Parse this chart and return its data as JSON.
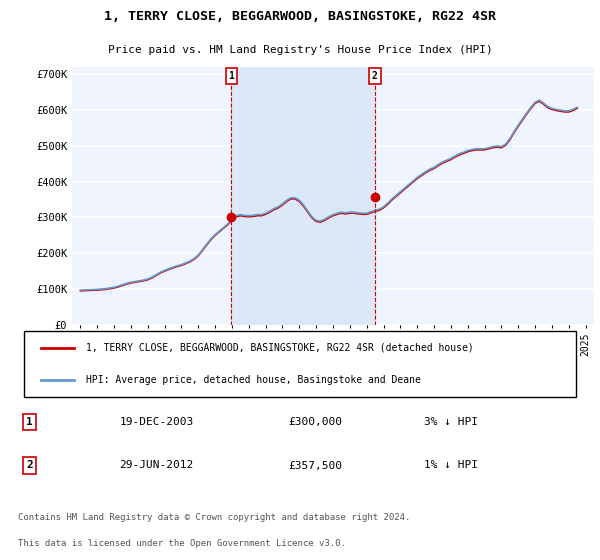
{
  "title": "1, TERRY CLOSE, BEGGARWOOD, BASINGSTOKE, RG22 4SR",
  "subtitle": "Price paid vs. HM Land Registry's House Price Index (HPI)",
  "ylabel_ticks": [
    "£0",
    "£100K",
    "£200K",
    "£300K",
    "£400K",
    "£500K",
    "£600K",
    "£700K"
  ],
  "ytick_vals": [
    0,
    100000,
    200000,
    300000,
    400000,
    500000,
    600000,
    700000
  ],
  "ylim": [
    0,
    720000
  ],
  "xlim_start": 1994.5,
  "xlim_end": 2025.5,
  "background_color": "#ffffff",
  "plot_bg_color": "#f0f4ff",
  "grid_color": "#ffffff",
  "red_line_color": "#cc0000",
  "blue_line_color": "#6699cc",
  "shade_color": "#dce8f8",
  "marker1_x": 2003.97,
  "marker1_y": 300000,
  "marker2_x": 2012.49,
  "marker2_y": 357500,
  "sale1_label": "1",
  "sale2_label": "2",
  "sale1_date": "19-DEC-2003",
  "sale1_price": "£300,000",
  "sale1_hpi": "3% ↓ HPI",
  "sale2_date": "29-JUN-2012",
  "sale2_price": "£357,500",
  "sale2_hpi": "1% ↓ HPI",
  "legend_line1": "1, TERRY CLOSE, BEGGARWOOD, BASINGSTOKE, RG22 4SR (detached house)",
  "legend_line2": "HPI: Average price, detached house, Basingstoke and Deane",
  "footnote1": "Contains HM Land Registry data © Crown copyright and database right 2024.",
  "footnote2": "This data is licensed under the Open Government Licence v3.0.",
  "hpi_data": {
    "years": [
      1995.0,
      1995.25,
      1995.5,
      1995.75,
      1996.0,
      1996.25,
      1996.5,
      1996.75,
      1997.0,
      1997.25,
      1997.5,
      1997.75,
      1998.0,
      1998.25,
      1998.5,
      1998.75,
      1999.0,
      1999.25,
      1999.5,
      1999.75,
      2000.0,
      2000.25,
      2000.5,
      2000.75,
      2001.0,
      2001.25,
      2001.5,
      2001.75,
      2002.0,
      2002.25,
      2002.5,
      2002.75,
      2003.0,
      2003.25,
      2003.5,
      2003.75,
      2004.0,
      2004.25,
      2004.5,
      2004.75,
      2005.0,
      2005.25,
      2005.5,
      2005.75,
      2006.0,
      2006.25,
      2006.5,
      2006.75,
      2007.0,
      2007.25,
      2007.5,
      2007.75,
      2008.0,
      2008.25,
      2008.5,
      2008.75,
      2009.0,
      2009.25,
      2009.5,
      2009.75,
      2010.0,
      2010.25,
      2010.5,
      2010.75,
      2011.0,
      2011.25,
      2011.5,
      2011.75,
      2012.0,
      2012.25,
      2012.5,
      2012.75,
      2013.0,
      2013.25,
      2013.5,
      2013.75,
      2014.0,
      2014.25,
      2014.5,
      2014.75,
      2015.0,
      2015.25,
      2015.5,
      2015.75,
      2016.0,
      2016.25,
      2016.5,
      2016.75,
      2017.0,
      2017.25,
      2017.5,
      2017.75,
      2018.0,
      2018.25,
      2018.5,
      2018.75,
      2019.0,
      2019.25,
      2019.5,
      2019.75,
      2020.0,
      2020.25,
      2020.5,
      2020.75,
      2021.0,
      2021.25,
      2021.5,
      2021.75,
      2022.0,
      2022.25,
      2022.5,
      2022.75,
      2023.0,
      2023.25,
      2023.5,
      2023.75,
      2024.0,
      2024.25,
      2024.5
    ],
    "hpi_values": [
      97000,
      97500,
      98000,
      98500,
      99000,
      100000,
      101000,
      103000,
      105000,
      108000,
      112000,
      116000,
      119000,
      121000,
      123000,
      125000,
      128000,
      133000,
      140000,
      147000,
      152000,
      157000,
      161000,
      165000,
      168000,
      173000,
      178000,
      185000,
      195000,
      210000,
      225000,
      240000,
      252000,
      262000,
      272000,
      282000,
      295000,
      305000,
      308000,
      306000,
      305000,
      306000,
      308000,
      308000,
      312000,
      318000,
      325000,
      330000,
      338000,
      348000,
      355000,
      355000,
      348000,
      335000,
      318000,
      302000,
      292000,
      290000,
      295000,
      302000,
      308000,
      312000,
      315000,
      313000,
      315000,
      315000,
      313000,
      312000,
      312000,
      316000,
      320000,
      323000,
      330000,
      340000,
      352000,
      362000,
      372000,
      382000,
      392000,
      402000,
      412000,
      420000,
      428000,
      435000,
      440000,
      448000,
      455000,
      460000,
      465000,
      472000,
      478000,
      482000,
      487000,
      490000,
      492000,
      492000,
      492000,
      495000,
      498000,
      500000,
      498000,
      505000,
      520000,
      540000,
      558000,
      575000,
      592000,
      608000,
      622000,
      628000,
      620000,
      610000,
      605000,
      602000,
      600000,
      598000,
      598000,
      602000,
      608000
    ],
    "price_values": [
      95000,
      95500,
      96000,
      96500,
      97000,
      98000,
      99000,
      101000,
      103000,
      106000,
      110000,
      114000,
      117000,
      119000,
      121000,
      123000,
      126000,
      131000,
      138000,
      145000,
      150000,
      155000,
      159000,
      163000,
      166000,
      171000,
      176000,
      183000,
      193000,
      208000,
      223000,
      238000,
      250000,
      260000,
      270000,
      280000,
      292000,
      302000,
      305000,
      303000,
      302000,
      303000,
      305000,
      305000,
      309000,
      315000,
      322000,
      327000,
      335000,
      345000,
      352000,
      352000,
      345000,
      332000,
      315000,
      299000,
      289000,
      287000,
      292000,
      299000,
      305000,
      309000,
      312000,
      310000,
      312000,
      312000,
      310000,
      309000,
      309000,
      313000,
      317000,
      320000,
      327000,
      337000,
      349000,
      359000,
      369000,
      379000,
      389000,
      399000,
      409000,
      417000,
      425000,
      432000,
      437000,
      445000,
      452000,
      457000,
      462000,
      469000,
      475000,
      479000,
      484000,
      487000,
      489000,
      489000,
      489000,
      492000,
      495000,
      497000,
      495000,
      502000,
      517000,
      537000,
      555000,
      572000,
      589000,
      605000,
      619000,
      625000,
      617000,
      607000,
      602000,
      599000,
      597000,
      595000,
      595000,
      599000,
      605000
    ]
  }
}
